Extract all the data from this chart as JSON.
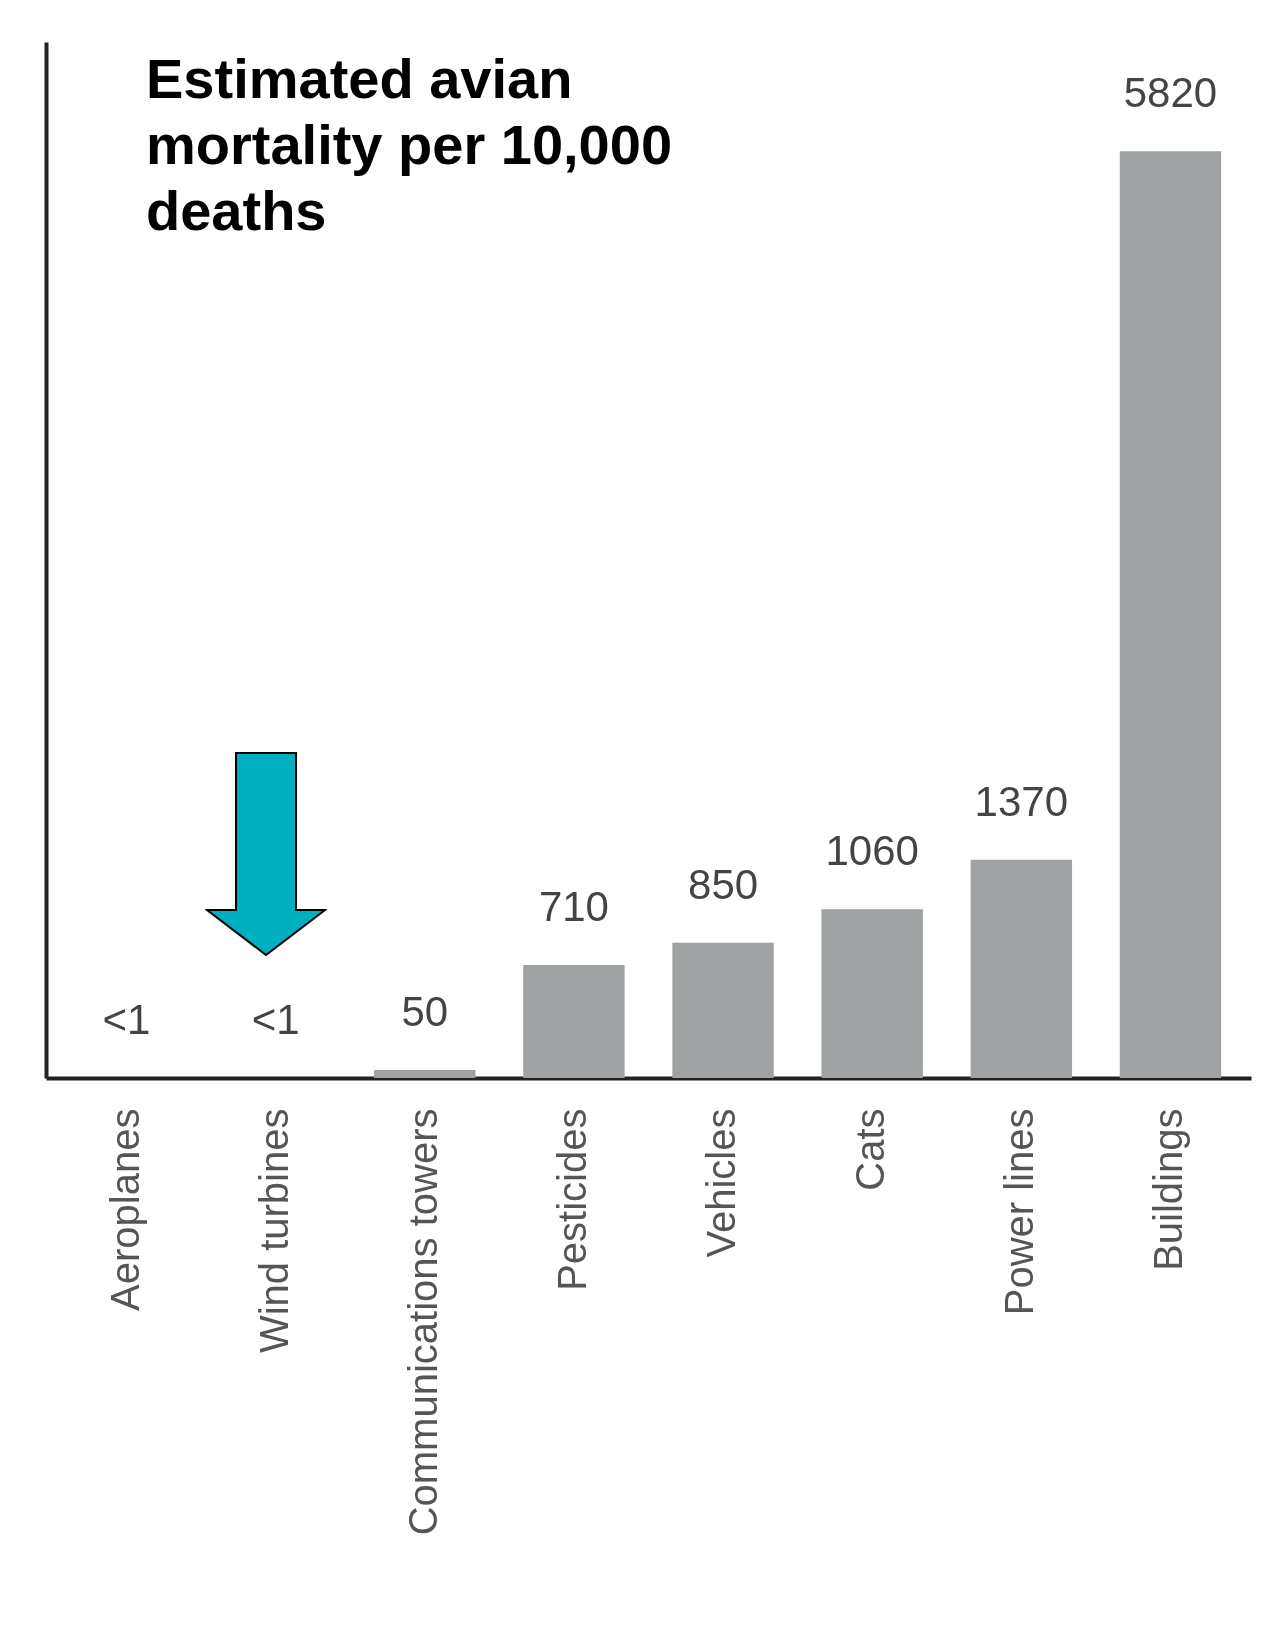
{
  "chart_data": {
    "type": "bar",
    "title": "Estimated avian mortality per 10,000 deaths",
    "categories": [
      "Aeroplanes",
      "Wind turbines",
      "Communications towers",
      "Pesticides",
      "Vehicles",
      "Cats",
      "Power lines",
      "Buildings"
    ],
    "values": [
      0.5,
      0.5,
      50,
      710,
      850,
      1060,
      1370,
      5820
    ],
    "value_labels": [
      "<1",
      "<1",
      "50",
      "710",
      "850",
      "1060",
      "1370",
      "5820"
    ],
    "color": "#9ea2a2"
  }
}
